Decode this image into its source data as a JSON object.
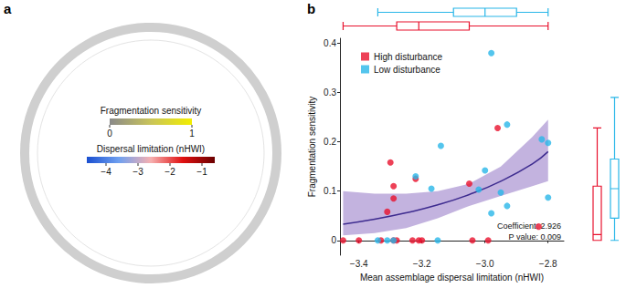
{
  "chart_data": [
    {
      "type": "phylogeny",
      "title": "a",
      "colorbars": [
        {
          "label": "Fragmentation sensitivity",
          "range": [
            0,
            1
          ],
          "ticks": [
            0,
            1
          ],
          "colors": [
            "#8a8a8a",
            "#c9c45a",
            "#f2ee00"
          ]
        },
        {
          "label": "Dispersal limitation (nHWI)",
          "range": [
            -4.6,
            -0.6
          ],
          "ticks": [
            {
              "value": -4,
              "label": "−4"
            },
            {
              "value": -3,
              "label": "−3"
            },
            {
              "value": -2,
              "label": "−2"
            },
            {
              "value": -1,
              "label": "−1"
            }
          ],
          "colors": [
            "#1a4fd0",
            "#6fa0f0",
            "#f6b0b0",
            "#e01010",
            "#6b0000"
          ]
        }
      ]
    },
    {
      "type": "scatter",
      "title": "b",
      "x_label": "Mean assemblage dispersal limitation (nHWI)",
      "y_label": "Fragmentation sensitivity",
      "xlim": [
        -3.46,
        -2.75
      ],
      "ylim": [
        -0.03,
        0.41
      ],
      "xticks": [
        {
          "value": -3.4,
          "label": "−3.4"
        },
        {
          "value": -3.2,
          "label": "−3.2"
        },
        {
          "value": -3.0,
          "label": "−3.0"
        },
        {
          "value": -2.8,
          "label": "−2.8"
        }
      ],
      "yticks": [
        0,
        0.1,
        0.2,
        0.3,
        0.4
      ],
      "grid": false,
      "legend": "upper left",
      "annotations": [
        "Coefficient: 2.926",
        "P value: 0.009"
      ],
      "series": [
        {
          "name": "High disturbance",
          "color": "#e8112d",
          "marker": "circle",
          "x": [
            -3.45,
            -3.4,
            -3.33,
            -3.29,
            -3.28,
            -3.23,
            -3.21,
            -3.2,
            -3.04,
            -2.99,
            -3.3,
            -3.29,
            -3.29,
            -3.31,
            -3.22,
            -3.05,
            -2.96,
            -2.83
          ],
          "values": [
            0,
            0,
            0,
            0,
            0,
            0,
            0,
            0,
            0,
            0,
            0.158,
            0.11,
            0.085,
            0.058,
            0.125,
            0.115,
            0.228,
            0.028
          ]
        },
        {
          "name": "Low disturbance",
          "color": "#29b6e8",
          "marker": "circle",
          "x": [
            -2.98,
            -2.93,
            -2.82,
            -2.8,
            -3.14,
            -3.0,
            -3.22,
            -3.17,
            -3.02,
            -2.95,
            -2.98,
            -2.93,
            -2.8,
            -3.34,
            -3.31,
            -3.29,
            -3.15
          ],
          "values": [
            0.38,
            0.235,
            0.205,
            0.198,
            0.192,
            0.142,
            0.13,
            0.105,
            0.103,
            0.097,
            0.055,
            0.07,
            0.087,
            0,
            0,
            0,
            0
          ]
        }
      ],
      "fit": {
        "color": "#3d2b8f",
        "x": [
          -3.45,
          -3.35,
          -3.25,
          -3.15,
          -3.05,
          -2.95,
          -2.85,
          -2.8
        ],
        "values": [
          0.033,
          0.043,
          0.056,
          0.072,
          0.093,
          0.12,
          0.155,
          0.18
        ],
        "band": {
          "color": "#b8a6d9",
          "lower": [
            0.01,
            0.015,
            0.025,
            0.045,
            0.07,
            0.09,
            0.11,
            0.12
          ],
          "upper": [
            0.1,
            0.095,
            0.095,
            0.1,
            0.115,
            0.15,
            0.21,
            0.245
          ]
        }
      },
      "boxplots": {
        "x": [
          {
            "group": "High disturbance",
            "stats": [
              -3.45,
              -3.28,
              -3.21,
              -3.05,
              -2.8
            ]
          },
          {
            "group": "Low disturbance",
            "stats": [
              -3.34,
              -3.1,
              -3.0,
              -2.9,
              -2.8
            ]
          }
        ],
        "y": [
          {
            "group": "High disturbance",
            "stats": [
              0,
              0,
              0.012,
              0.11,
              0.228
            ]
          },
          {
            "group": "Low disturbance",
            "stats": [
              0,
              0.045,
              0.105,
              0.165,
              0.29
            ]
          }
        ]
      }
    }
  ]
}
